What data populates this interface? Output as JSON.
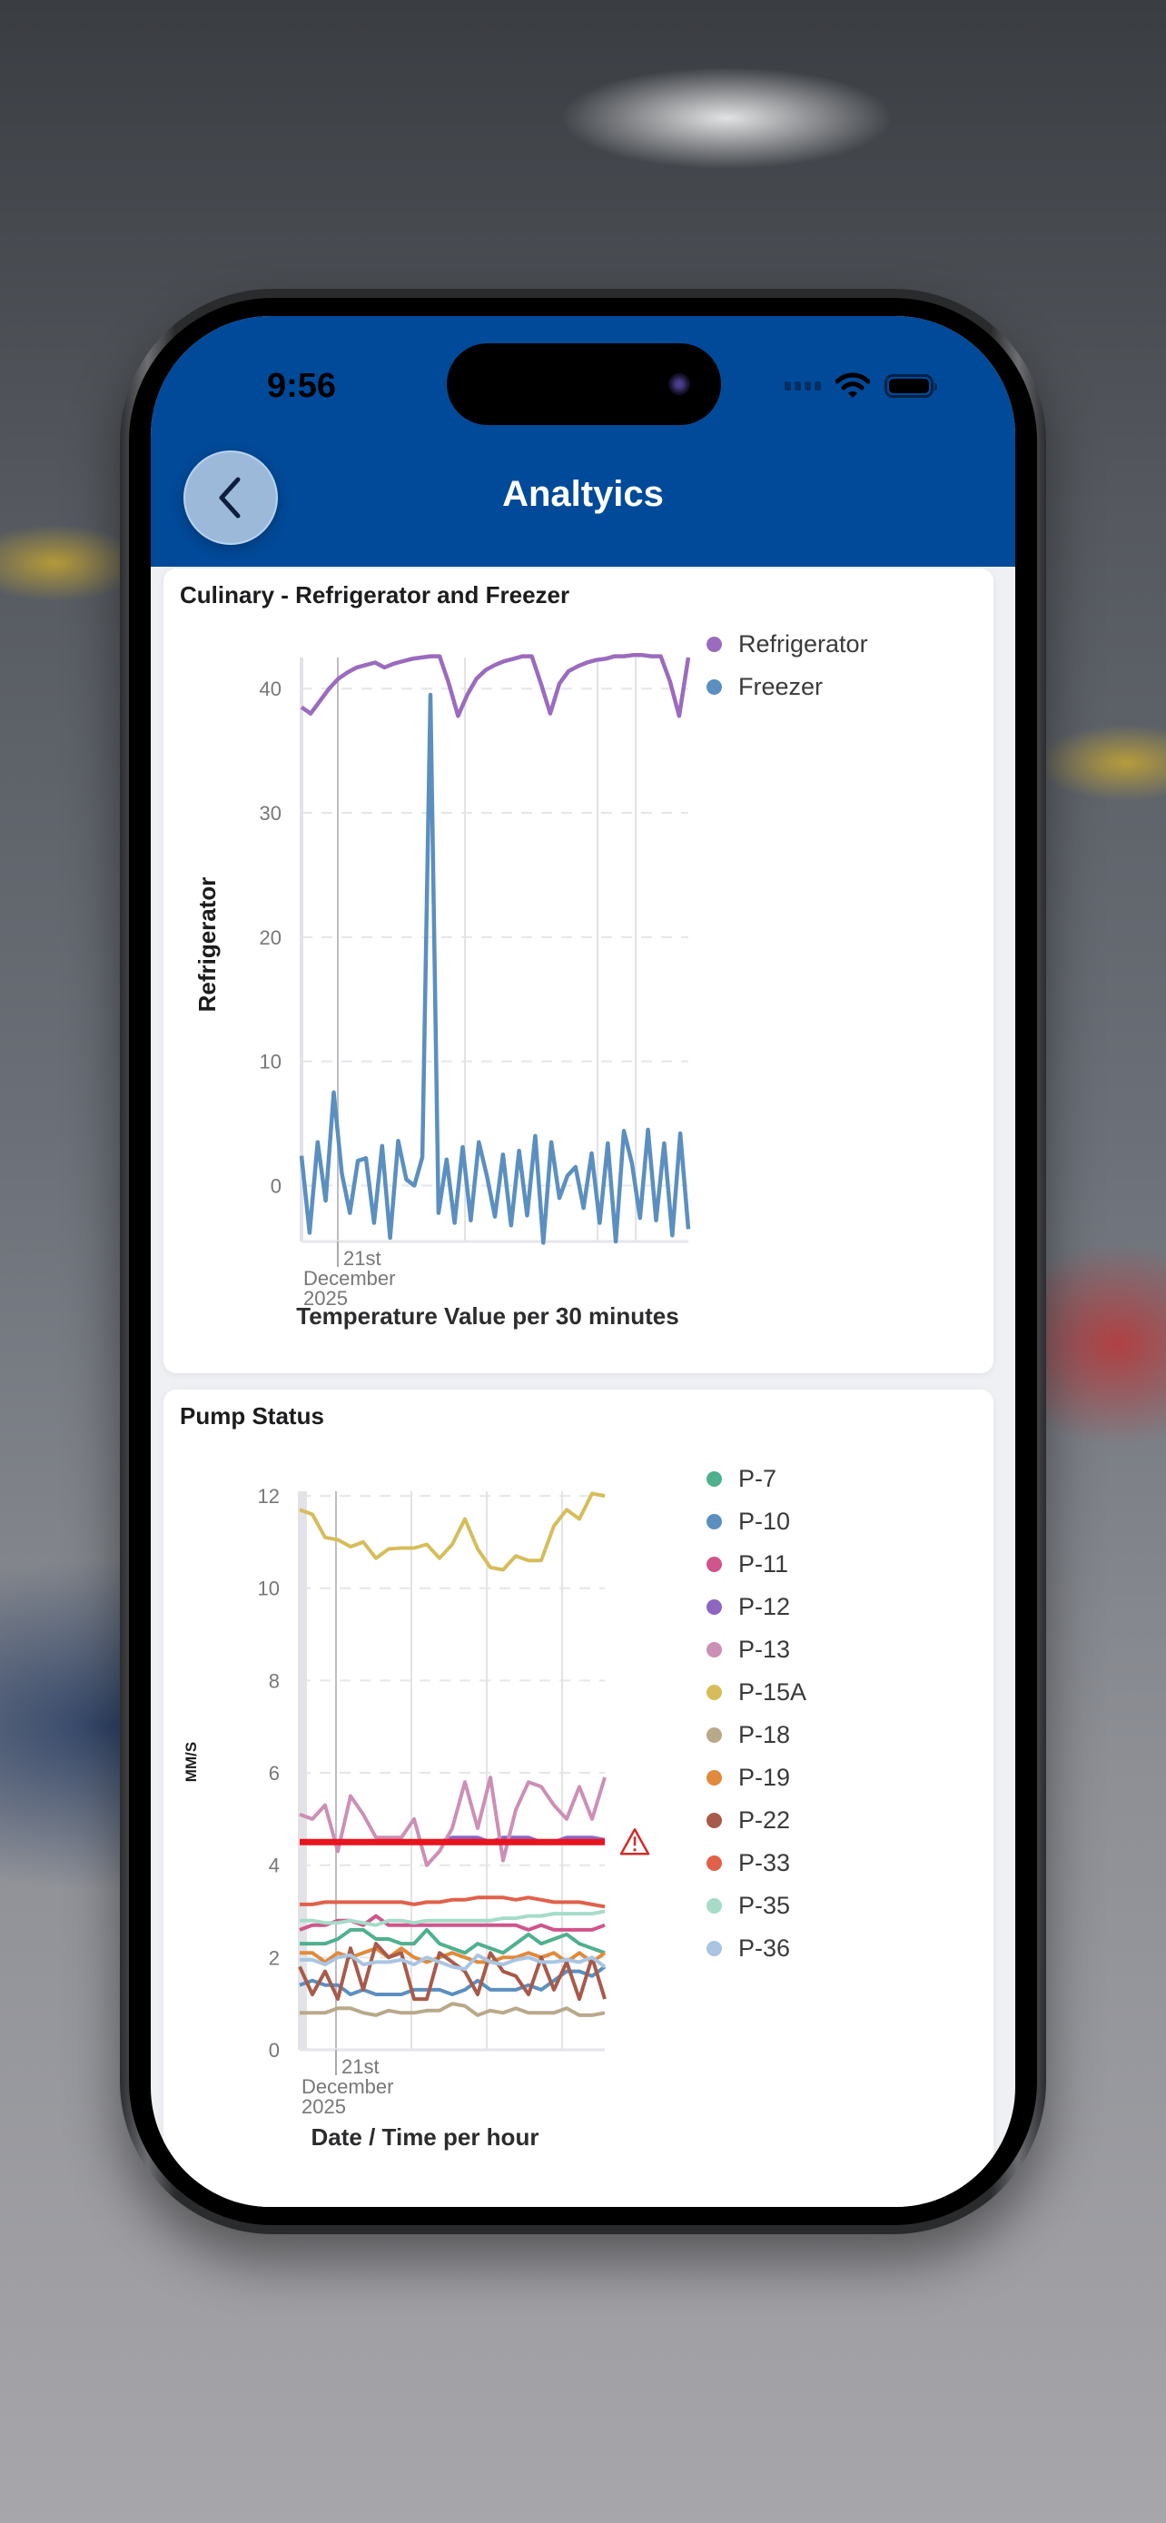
{
  "status_bar": {
    "time": "9:56"
  },
  "header": {
    "title": "Analtyics",
    "back_label": "Back"
  },
  "colors": {
    "header_bg": "#004a99",
    "threshold": "#e8141e"
  },
  "chart_data": [
    {
      "type": "line",
      "title": "Culinary - Refrigerator and Freezer",
      "xlabel": "Temperature Value per 30 minutes",
      "ylabel": "Refrigerator",
      "ylim": [
        -4.5,
        42.5
      ],
      "yticks": [
        0,
        10,
        20,
        30,
        40
      ],
      "x_tick_label": [
        "21st",
        "December",
        "2025"
      ],
      "grid": true,
      "legend_position": "right",
      "series": [
        {
          "name": "Refrigerator",
          "color": "#9b6bbf",
          "values": [
            38.5,
            38,
            39,
            40,
            40.8,
            41.3,
            41.7,
            41.9,
            42.1,
            41.7,
            42,
            42.2,
            42.4,
            42.5,
            42.6,
            42.6,
            40.4,
            37.8,
            39.5,
            40.8,
            41.5,
            41.9,
            42.2,
            42.4,
            42.6,
            42.6,
            40.4,
            38,
            40.4,
            41.4,
            41.8,
            42.1,
            42.3,
            42.4,
            42.6,
            42.6,
            42.7,
            42.7,
            42.6,
            42.6,
            40.6,
            37.8,
            42.5
          ]
        },
        {
          "name": "Freezer",
          "color": "#5b8fc0",
          "values": [
            2.4,
            -3.8,
            3.5,
            -1.2,
            7.5,
            1,
            -2.2,
            2,
            2.2,
            -3,
            3.2,
            -4.2,
            3.6,
            0.5,
            0,
            2.3,
            39.5,
            -2.2,
            2.1,
            -3,
            3.1,
            -2.8,
            3.5,
            0.8,
            -2.5,
            2.5,
            -3.2,
            2.8,
            -2.4,
            4,
            -4.6,
            3.5,
            -1,
            0.8,
            1.5,
            -1.8,
            2.6,
            -3,
            3.4,
            -4.5,
            4.4,
            1.8,
            -2.6,
            4.5,
            -2.8,
            3.4,
            -4,
            4.2,
            -3.5
          ]
        }
      ]
    },
    {
      "type": "line",
      "title": "Pump Status",
      "xlabel": "Date / Time per hour",
      "ylabel": "MM/S",
      "ylim": [
        0,
        12.1
      ],
      "yticks": [
        0,
        2,
        4,
        6,
        8,
        10,
        12
      ],
      "x_tick_label": [
        "21st",
        "December",
        "2025"
      ],
      "grid": true,
      "legend_position": "right",
      "threshold": {
        "value": 4.5,
        "color": "#e8141e",
        "icon": "warning-triangle-icon"
      },
      "series": [
        {
          "name": "P-7",
          "color": "#4fb08d",
          "values": [
            2.3,
            2.3,
            2.3,
            2.4,
            2.6,
            2.6,
            2.4,
            2.4,
            2.3,
            2.3,
            2.6,
            2.3,
            2.2,
            2.1,
            2.3,
            2.2,
            2.1,
            2.3,
            2.5,
            2.3,
            2.4,
            2.5,
            2.3,
            2.2,
            2.1
          ]
        },
        {
          "name": "P-10",
          "color": "#5b8fc0",
          "values": [
            1.4,
            1.5,
            1.4,
            1.4,
            1.2,
            1.3,
            1.2,
            1.2,
            1.2,
            1.3,
            1.3,
            1.3,
            1.2,
            1.3,
            1.5,
            1.3,
            1.3,
            1.3,
            1.4,
            1.3,
            1.5,
            1.7,
            1.7,
            1.6,
            1.8
          ]
        },
        {
          "name": "P-11",
          "color": "#d0558a",
          "values": [
            2.6,
            2.7,
            2.7,
            2.8,
            2.8,
            2.7,
            2.9,
            2.7,
            2.7,
            2.7,
            2.7,
            2.7,
            2.7,
            2.7,
            2.7,
            2.7,
            2.7,
            2.7,
            2.6,
            2.7,
            2.6,
            2.6,
            2.6,
            2.6,
            2.7
          ]
        },
        {
          "name": "P-12",
          "color": "#8e66c2",
          "values": [
            4.5,
            4.5,
            4.5,
            4.5,
            4.5,
            4.5,
            4.5,
            4.5,
            4.5,
            4.5,
            4.5,
            4.5,
            4.6,
            4.6,
            4.6,
            4.5,
            4.6,
            4.6,
            4.6,
            4.5,
            4.5,
            4.6,
            4.6,
            4.6,
            4.55
          ]
        },
        {
          "name": "P-13",
          "color": "#cc8fb5",
          "values": [
            5.1,
            5,
            5.3,
            4.3,
            5.5,
            5.1,
            4.6,
            4.6,
            4.6,
            5,
            4,
            4.3,
            4.8,
            5.8,
            4.8,
            5.9,
            4.1,
            5.2,
            5.8,
            5.7,
            5.3,
            5,
            5.7,
            5,
            5.9
          ]
        },
        {
          "name": "P-15A",
          "color": "#d6bd5a",
          "values": [
            11.7,
            11.6,
            11.1,
            11.05,
            10.9,
            11,
            10.65,
            10.85,
            10.87,
            10.87,
            10.95,
            10.65,
            10.95,
            11.5,
            10.85,
            10.45,
            10.4,
            10.7,
            10.6,
            10.6,
            11.35,
            11.7,
            11.5,
            12.05,
            12.0
          ]
        },
        {
          "name": "P-18",
          "color": "#b8a98a",
          "values": [
            0.8,
            0.8,
            0.8,
            0.9,
            0.9,
            0.8,
            0.75,
            0.85,
            0.8,
            0.8,
            0.85,
            0.85,
            1,
            0.95,
            0.75,
            0.85,
            0.8,
            0.9,
            0.8,
            0.8,
            0.8,
            0.9,
            0.75,
            0.75,
            0.8
          ]
        },
        {
          "name": "P-19",
          "color": "#e08a3c",
          "values": [
            2.1,
            2.1,
            1.9,
            2.1,
            2,
            2.1,
            2.2,
            2,
            2.2,
            2,
            1.9,
            2,
            2.1,
            2,
            1.9,
            1.9,
            2,
            2,
            2.1,
            2,
            2.1,
            1.9,
            2.1,
            1.9,
            2.1
          ]
        },
        {
          "name": "P-22",
          "color": "#a85a4a",
          "values": [
            1.8,
            1.2,
            1.7,
            1.1,
            2.2,
            1.3,
            2.3,
            2,
            2.1,
            1.1,
            1.1,
            2.1,
            1.9,
            1.7,
            1.2,
            2.1,
            1.7,
            1.6,
            1.2,
            2,
            1.3,
            1.9,
            1.1,
            2,
            1.1
          ]
        },
        {
          "name": "P-33",
          "color": "#e0614a",
          "values": [
            3.15,
            3.15,
            3.2,
            3.2,
            3.2,
            3.2,
            3.2,
            3.2,
            3.2,
            3.15,
            3.2,
            3.2,
            3.25,
            3.25,
            3.3,
            3.3,
            3.3,
            3.25,
            3.3,
            3.25,
            3.2,
            3.2,
            3.2,
            3.15,
            3.1
          ]
        },
        {
          "name": "P-35",
          "color": "#a6dcc8",
          "values": [
            2.8,
            2.8,
            2.75,
            2.75,
            2.8,
            2.75,
            2.7,
            2.8,
            2.8,
            2.75,
            2.8,
            2.8,
            2.8,
            2.8,
            2.8,
            2.8,
            2.85,
            2.85,
            2.9,
            2.9,
            2.95,
            2.95,
            2.95,
            2.95,
            3
          ]
        },
        {
          "name": "P-36",
          "color": "#a9c5e2",
          "values": [
            1.95,
            1.95,
            1.85,
            2,
            2.05,
            1.85,
            1.9,
            1.9,
            1.95,
            1.85,
            2,
            1.9,
            1.8,
            1.75,
            2.05,
            1.9,
            1.85,
            1.95,
            2,
            1.9,
            1.9,
            1.95,
            1.9,
            2,
            1.8
          ]
        }
      ]
    }
  ]
}
